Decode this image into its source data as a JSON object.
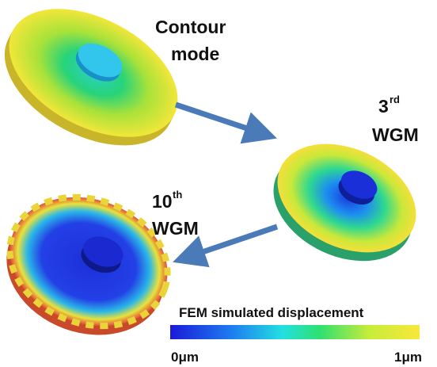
{
  "labels": {
    "contour": {
      "line1": "Contour",
      "line2": "mode"
    },
    "wgm3": {
      "number": "3",
      "suffix": "rd",
      "mode": "WGM"
    },
    "wgm10": {
      "number": "10",
      "suffix": "th",
      "mode": "WGM"
    }
  },
  "colorbar": {
    "title": "FEM simulated displacement",
    "min_label": "0μm",
    "max_label": "1μm"
  }
}
